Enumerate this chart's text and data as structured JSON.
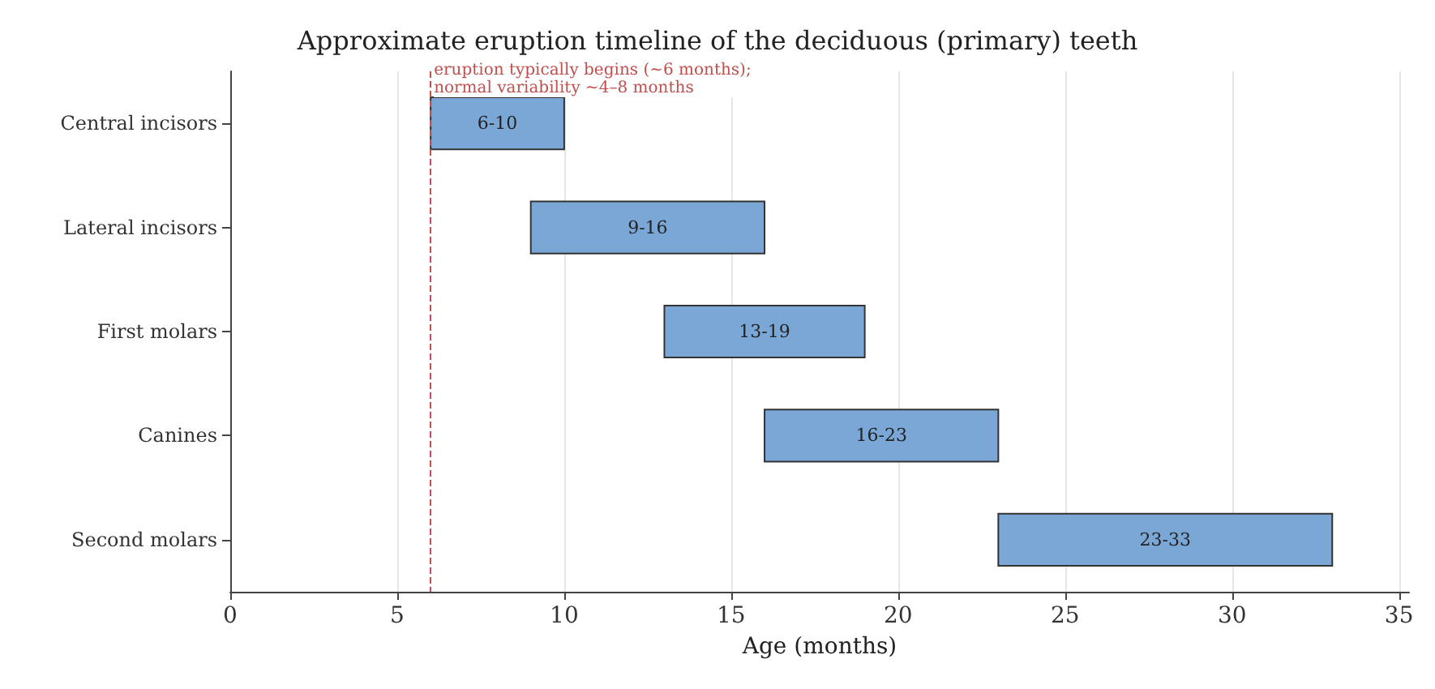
{
  "chart_data": {
    "type": "bar",
    "orientation": "horizontal",
    "title": "Approximate eruption timeline of the deciduous (primary) teeth",
    "xlabel": "Age (months)",
    "categories": [
      "Central incisors",
      "Lateral incisors",
      "First molars",
      "Canines",
      "Second molars"
    ],
    "base": [
      6,
      9,
      13,
      16,
      23
    ],
    "values": [
      4,
      7,
      6,
      7,
      10
    ],
    "value_labels": [
      "6-10",
      "9-16",
      "13-19",
      "16-23",
      "23-33"
    ],
    "color": "#7ba7d6",
    "xlim": [
      0,
      35.3
    ],
    "xticks": [
      0,
      5,
      10,
      15,
      20,
      25,
      30,
      35
    ],
    "grid": "x",
    "ref_lines": [
      {
        "axis": "x",
        "value": 6,
        "label": "eruption typically begins (~6 months);\nnormal variability ~4–8 months",
        "color": "#c0504d",
        "line_style": "dashed"
      }
    ]
  }
}
